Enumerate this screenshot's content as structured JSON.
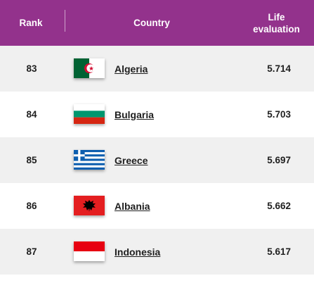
{
  "header": {
    "rank": "Rank",
    "country": "Country",
    "life_line1": "Life",
    "life_line2": "evaluation"
  },
  "colors": {
    "header_bg": "#93328c",
    "row_alt": "#f0f0f0"
  },
  "rows": [
    {
      "rank": "83",
      "country": "Algeria",
      "score": "5.714",
      "flag": "algeria-flag-icon"
    },
    {
      "rank": "84",
      "country": "Bulgaria",
      "score": "5.703",
      "flag": "bulgaria-flag-icon"
    },
    {
      "rank": "85",
      "country": "Greece",
      "score": "5.697",
      "flag": "greece-flag-icon"
    },
    {
      "rank": "86",
      "country": "Albania",
      "score": "5.662",
      "flag": "albania-flag-icon"
    },
    {
      "rank": "87",
      "country": "Indonesia",
      "score": "5.617",
      "flag": "indonesia-flag-icon"
    }
  ]
}
